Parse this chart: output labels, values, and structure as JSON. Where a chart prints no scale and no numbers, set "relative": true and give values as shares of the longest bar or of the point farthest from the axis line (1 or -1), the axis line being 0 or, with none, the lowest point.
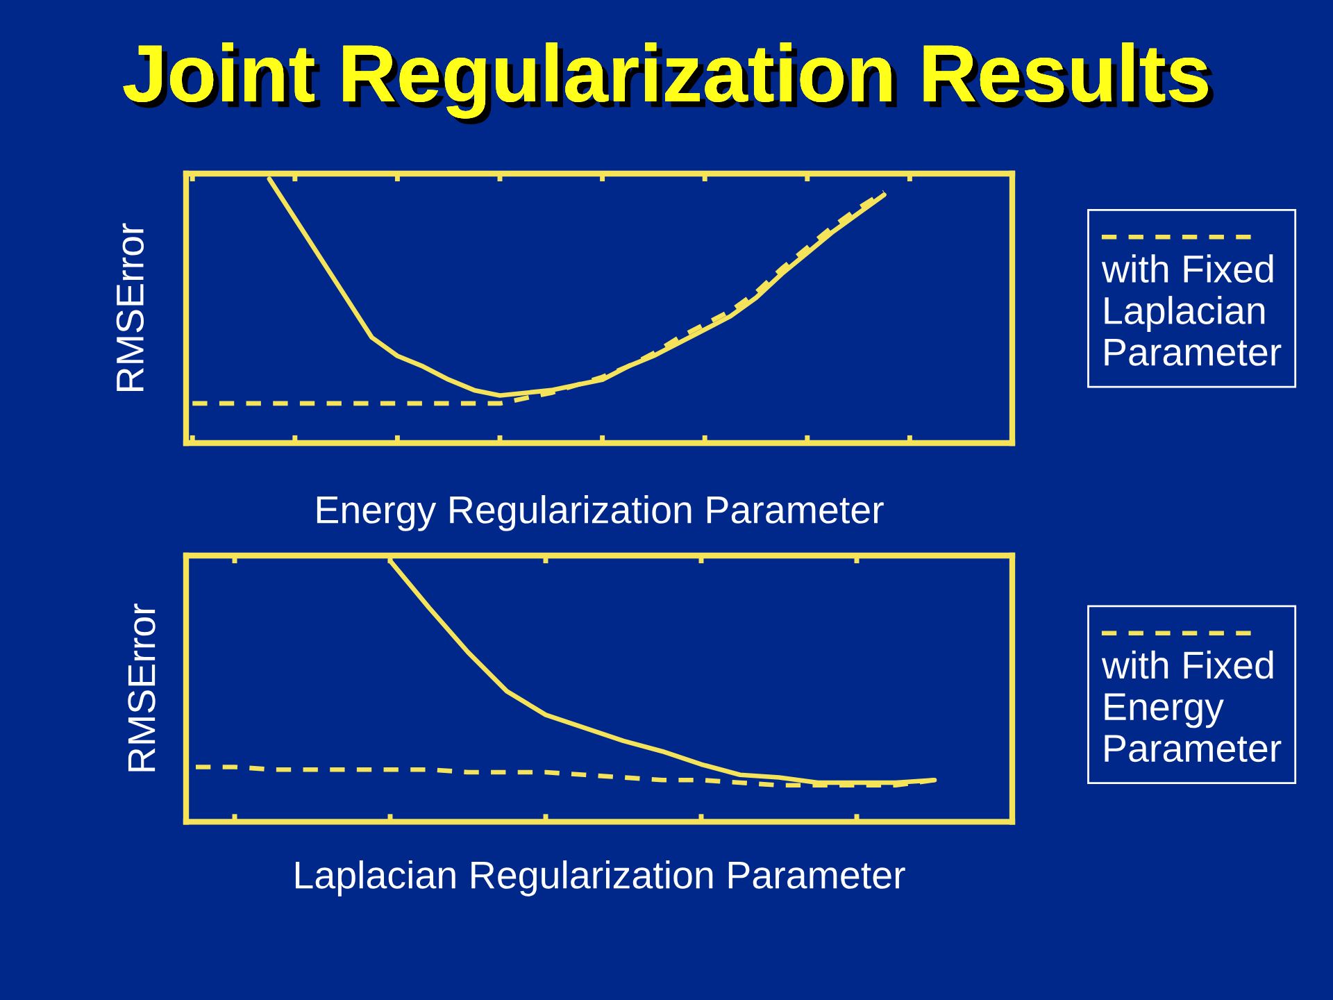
{
  "chart_data": [
    {
      "type": "line",
      "title": "Joint Regularization Results",
      "xlabel": "Energy Regularization Parameter",
      "ylabel": "RMSError",
      "relative": true,
      "tick_labels": false,
      "legend": "right",
      "categories": [
        null,
        null,
        null,
        null,
        null,
        null,
        null,
        null,
        null,
        null,
        null,
        null,
        null,
        null,
        null,
        null,
        null,
        null,
        null,
        null,
        null,
        null,
        null,
        null,
        null,
        null,
        null,
        null,
        null,
        null,
        null,
        null,
        null
      ],
      "series": [
        {
          "color": "#f5e35a",
          "line_style": "solid",
          "values": [
            null,
            null,
            null,
            1.0,
            0.85,
            0.7,
            0.55,
            0.4,
            0.33,
            0.29,
            0.24,
            0.2,
            0.18,
            0.19,
            0.2,
            0.22,
            0.24,
            0.29,
            0.33,
            0.38,
            0.43,
            0.48,
            0.55,
            0.64,
            0.72,
            0.8,
            0.87,
            0.94,
            null,
            null,
            null,
            null,
            null
          ]
        },
        {
          "name": "with Fixed Laplacian Parameter",
          "color": "#f5e35a",
          "line_style": "dashed",
          "values": [
            0.15,
            0.15,
            0.15,
            0.15,
            0.15,
            0.15,
            0.15,
            0.15,
            0.15,
            0.15,
            0.15,
            0.15,
            0.15,
            0.17,
            0.19,
            0.22,
            0.25,
            0.29,
            0.34,
            0.4,
            0.45,
            0.5,
            0.57,
            0.66,
            0.74,
            0.82,
            0.89,
            0.95,
            null,
            null,
            null,
            null,
            null
          ]
        }
      ]
    },
    {
      "type": "line",
      "xlabel": "Laplacian Regularization Parameter",
      "ylabel": "RMSError",
      "relative": true,
      "tick_labels": false,
      "legend": "right",
      "categories": [
        null,
        null,
        null,
        null,
        null,
        null,
        null,
        null,
        null,
        null,
        null,
        null,
        null,
        null,
        null,
        null,
        null,
        null,
        null,
        null,
        null,
        null
      ],
      "series": [
        {
          "color": "#f5e35a",
          "line_style": "solid",
          "values": [
            null,
            null,
            null,
            null,
            null,
            1.0,
            0.82,
            0.65,
            0.5,
            0.41,
            0.36,
            0.31,
            0.27,
            0.22,
            0.18,
            0.17,
            0.15,
            0.15,
            0.15,
            0.16,
            null,
            null
          ]
        },
        {
          "name": "with Fixed Energy Parameter",
          "color": "#f5e35a",
          "line_style": "dashed",
          "values": [
            0.21,
            0.21,
            0.2,
            0.2,
            0.2,
            0.2,
            0.2,
            0.19,
            0.19,
            0.19,
            0.18,
            0.17,
            0.16,
            0.16,
            0.15,
            0.14,
            0.14,
            0.14,
            0.14,
            0.16,
            null,
            null
          ]
        }
      ]
    }
  ]
}
